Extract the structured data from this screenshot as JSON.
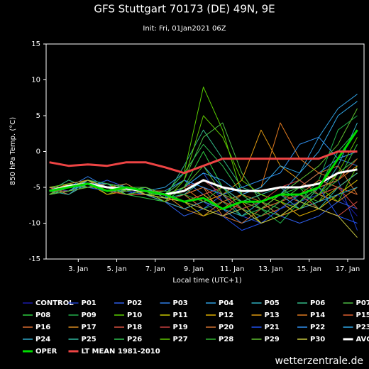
{
  "chart_data": {
    "type": "line",
    "title": "GFS Stuttgart 70173 (DE) 49N, 9E",
    "subtitle": "Init: Fri, 01Jan2021 06Z",
    "x_label": "Local time (UTC+1)",
    "y_label": "850 hPa Temp. (°C)",
    "watermark": "wetterzentrale.de",
    "x": [
      1.5,
      2.5,
      3.5,
      4.5,
      5.5,
      6.5,
      7.5,
      8.5,
      9.5,
      10.5,
      11.5,
      12.5,
      13.5,
      14.5,
      15.5,
      16.5,
      17.5
    ],
    "xlim": [
      1.33,
      17.85
    ],
    "xticks": [
      {
        "value": 3,
        "label": "3. Jan"
      },
      {
        "value": 5,
        "label": "5. Jan"
      },
      {
        "value": 7,
        "label": "7. Jan"
      },
      {
        "value": 9,
        "label": "9. Jan"
      },
      {
        "value": 11,
        "label": "11. Jan"
      },
      {
        "value": 13,
        "label": "13. Jan"
      },
      {
        "value": 15,
        "label": "15. Jan"
      },
      {
        "value": 17,
        "label": "17. Jan"
      }
    ],
    "ylim": [
      -15,
      15
    ],
    "yticks": [
      -15,
      -10,
      -5,
      0,
      5,
      10,
      15
    ],
    "grid": false,
    "series": [
      {
        "name": "CONTROL",
        "color": "#1a1aaa",
        "values": [
          -6,
          -5,
          -4.5,
          -5,
          -5.5,
          -6,
          -7,
          -8,
          -7,
          -9,
          -8,
          -9,
          -7,
          -8,
          -7,
          -6,
          -9
        ]
      },
      {
        "name": "P01",
        "color": "#1f3fcc",
        "values": [
          -5,
          -5.5,
          -4,
          -5,
          -6,
          -5,
          -6.5,
          -5,
          -3,
          -7,
          -9,
          -10,
          -8,
          -7,
          -6,
          -4,
          -11
        ]
      },
      {
        "name": "P02",
        "color": "#2e5ee8",
        "values": [
          -6,
          -4.5,
          -5,
          -4,
          -5,
          -6,
          -7,
          -9,
          -8,
          -6,
          -8,
          -7,
          -9,
          -10,
          -9,
          -7,
          -8
        ]
      },
      {
        "name": "P03",
        "color": "#2f7fe8",
        "values": [
          -5.5,
          -5,
          -3.5,
          -5,
          -5.5,
          -6,
          -6,
          -4,
          -6,
          -8,
          -10,
          -9,
          -7,
          -5,
          -3,
          -1,
          -2
        ]
      },
      {
        "name": "P04",
        "color": "#2f9fe0",
        "values": [
          -5,
          -6,
          -4,
          -4.5,
          -6,
          -5.5,
          -5,
          -3,
          -2,
          -5,
          -7,
          -8,
          -6,
          -3,
          2,
          6,
          8
        ]
      },
      {
        "name": "P05",
        "color": "#2fb0c0",
        "values": [
          -6,
          -5.5,
          -4.5,
          -5,
          -5,
          -6,
          -7,
          -6,
          -4,
          -6,
          -9,
          -8,
          -6,
          -4,
          -6,
          -2,
          4
        ]
      },
      {
        "name": "P06",
        "color": "#33bb88",
        "values": [
          -5.5,
          -4,
          -5,
          -5.5,
          -4.5,
          -6,
          -6.5,
          -2,
          3,
          -1,
          -5,
          -6,
          -7,
          -8,
          -5,
          -4,
          1
        ]
      },
      {
        "name": "P07",
        "color": "#4cbb44",
        "values": [
          -6,
          -5,
          -4,
          -6,
          -5,
          -5,
          -6,
          -4,
          2,
          4,
          -3,
          -7,
          -8,
          -6,
          -7,
          -3,
          -1
        ]
      },
      {
        "name": "P08",
        "color": "#2ecc40",
        "values": [
          -5,
          -5,
          -4.5,
          -5,
          -6,
          -6.5,
          -7,
          -5,
          0,
          -5,
          -8,
          -7,
          -6,
          -5,
          -8,
          -6,
          -4
        ]
      },
      {
        "name": "P09",
        "color": "#22b04a",
        "values": [
          -6,
          -4.5,
          -4,
          -5.5,
          -5,
          -6,
          -5.5,
          -6,
          -8,
          -7,
          -9,
          -8,
          -10,
          -7,
          -4,
          3,
          5
        ]
      },
      {
        "name": "P10",
        "color": "#5ad000",
        "values": [
          -5.5,
          -5,
          -5,
          -4.5,
          -5.5,
          -5,
          -6,
          -3,
          9,
          3,
          -6,
          -8,
          -7,
          -6,
          -5,
          -7,
          -2
        ]
      },
      {
        "name": "P11",
        "color": "#c8c800",
        "values": [
          -6,
          -5.5,
          -4,
          -5,
          -5,
          -6,
          -6,
          -7,
          -9,
          -8,
          -7,
          -10,
          -9,
          -8,
          -7,
          -5,
          -3
        ]
      },
      {
        "name": "P12",
        "color": "#e0b000",
        "values": [
          -5,
          -5,
          -4.5,
          -6,
          -5.5,
          -5,
          -6.5,
          -7,
          -6,
          -8,
          -7,
          -6,
          -7,
          -9,
          -8,
          -6,
          -4
        ]
      },
      {
        "name": "P13",
        "color": "#e09a10",
        "values": [
          -5.5,
          -4.5,
          -5,
          -5,
          -5,
          -5.5,
          -7,
          -8,
          -7,
          -6,
          -4,
          3,
          -2,
          -4,
          -6,
          -5,
          -3
        ]
      },
      {
        "name": "P14",
        "color": "#e07a20",
        "values": [
          -6,
          -5,
          -4,
          -5.5,
          -6,
          -6,
          -6,
          -5,
          -7,
          -8,
          -6,
          -5,
          4,
          -1,
          -3,
          -4,
          -2
        ]
      },
      {
        "name": "P15",
        "color": "#e06030",
        "values": [
          -5,
          -6,
          -4.5,
          -5,
          -5,
          -5.5,
          -5.5,
          -6,
          -8,
          -9,
          -7,
          -8,
          -6,
          -7,
          -5,
          -4,
          -1
        ]
      },
      {
        "name": "P16",
        "color": "#d86a30",
        "values": [
          -5.5,
          -5,
          -5,
          -4.5,
          -5,
          -6,
          -7,
          -6,
          -5,
          -7,
          -8,
          -9,
          -8,
          -6,
          -4,
          -5,
          -6
        ]
      },
      {
        "name": "P17",
        "color": "#d88a20",
        "values": [
          -6,
          -4.5,
          -4,
          -5,
          -5.5,
          -5,
          -6,
          -8,
          -9,
          -7,
          -6,
          -7,
          -9,
          -8,
          -6,
          -7,
          -5
        ]
      },
      {
        "name": "P18",
        "color": "#d85040",
        "values": [
          -5,
          -5,
          -4.5,
          -5.5,
          -6,
          -6,
          -6.5,
          -7,
          -6,
          -5,
          -7,
          -8,
          -7,
          -6,
          -8,
          -9,
          -7
        ]
      },
      {
        "name": "P19",
        "color": "#c84040",
        "values": [
          -5.5,
          -5.5,
          -5,
          -5,
          -5,
          -5.5,
          -6,
          -5,
          -4,
          -6,
          -8,
          -7,
          -5,
          -4,
          -6,
          -5,
          -8
        ]
      },
      {
        "name": "P20",
        "color": "#d07030",
        "values": [
          -6,
          -5,
          -4,
          -5,
          -4.5,
          -6,
          -7,
          -6,
          -5,
          -9,
          -10,
          -8,
          -7,
          -5,
          -3,
          -2,
          -6
        ]
      },
      {
        "name": "P21",
        "color": "#2050ee",
        "values": [
          -5,
          -4.5,
          -5,
          -5.5,
          -5.5,
          -5,
          -6,
          -7,
          -8,
          -9,
          -11,
          -10,
          -8,
          -6,
          -5,
          -9,
          -10
        ]
      },
      {
        "name": "P22",
        "color": "#3090f0",
        "values": [
          -5.5,
          -5,
          -4.5,
          -4.5,
          -5,
          -6,
          -5.5,
          -4,
          -5,
          -6,
          -5,
          -4,
          -3,
          1,
          2,
          -1,
          0
        ]
      },
      {
        "name": "P23",
        "color": "#30a8e8",
        "values": [
          -6,
          -5.5,
          -4,
          -5,
          -6,
          -5.5,
          -6,
          -5,
          -3,
          -4,
          -6,
          -5,
          -2,
          -3,
          0,
          5,
          7
        ]
      },
      {
        "name": "P24",
        "color": "#30a8c8",
        "values": [
          -5,
          -5,
          -5,
          -5,
          -5,
          -6,
          -7,
          -8,
          -7,
          -8,
          -9,
          -7,
          -6,
          -8,
          -7,
          -6,
          -5
        ]
      },
      {
        "name": "P25",
        "color": "#30b8a0",
        "values": [
          -5.5,
          -6,
          -4.5,
          -5.5,
          -5.5,
          -5,
          -6.5,
          -6,
          -4,
          -5,
          -7,
          -6,
          -5,
          -7,
          -8,
          -5,
          -3
        ]
      },
      {
        "name": "P26",
        "color": "#30c050",
        "values": [
          -6,
          -5,
          -4,
          -4.5,
          -5,
          -6,
          -6,
          -3,
          1,
          -2,
          -6,
          -8,
          -9,
          -7,
          -5,
          0,
          3
        ]
      },
      {
        "name": "P27",
        "color": "#60c800",
        "values": [
          -5,
          -4.5,
          -5,
          -5,
          -6,
          -5.5,
          -7,
          -4,
          5,
          2,
          -4,
          -6,
          -7,
          -8,
          -6,
          -3,
          2
        ]
      },
      {
        "name": "P28",
        "color": "#30b030",
        "values": [
          -5.5,
          -5,
          -4.5,
          -5.5,
          -5,
          -6,
          -5.5,
          -6,
          -7,
          -5,
          -8,
          -9,
          -7,
          -5,
          -6,
          -4,
          1
        ]
      },
      {
        "name": "P29",
        "color": "#60c030",
        "values": [
          -6,
          -5.5,
          -5,
          -5,
          -5.5,
          -5,
          -6,
          -5,
          -2,
          -6,
          -7,
          -8,
          -6,
          -4,
          -2,
          1,
          6
        ]
      },
      {
        "name": "P30",
        "color": "#c8c840",
        "values": [
          -5,
          -5,
          -4,
          -5,
          -5,
          -6,
          -6.5,
          -7,
          -8,
          -9,
          -8,
          -10,
          -9,
          -7,
          -8,
          -9,
          -12
        ]
      },
      {
        "name": "AVG",
        "color": "#ffffff",
        "linewidth": 3,
        "values": [
          -5.5,
          -4.8,
          -4.5,
          -5,
          -5.2,
          -5.5,
          -6,
          -5.5,
          -4,
          -5,
          -5.5,
          -5.5,
          -5,
          -5,
          -4.5,
          -3,
          -2.5
        ]
      },
      {
        "name": "OPER",
        "color": "#00dd00",
        "linewidth": 3,
        "values": [
          -5.5,
          -5,
          -4.5,
          -5.5,
          -5,
          -5.5,
          -6,
          -7,
          -6.5,
          -8,
          -7,
          -7,
          -6,
          -6,
          -5,
          -1,
          3
        ]
      },
      {
        "name": "LT MEAN 1981-2010",
        "color": "#ee4444",
        "linewidth": 3,
        "values": [
          -1.5,
          -2,
          -1.8,
          -2,
          -1.5,
          -1.5,
          -2.2,
          -3,
          -2,
          -1,
          -1,
          -1,
          -1,
          -1,
          -1,
          0,
          0
        ]
      }
    ]
  }
}
